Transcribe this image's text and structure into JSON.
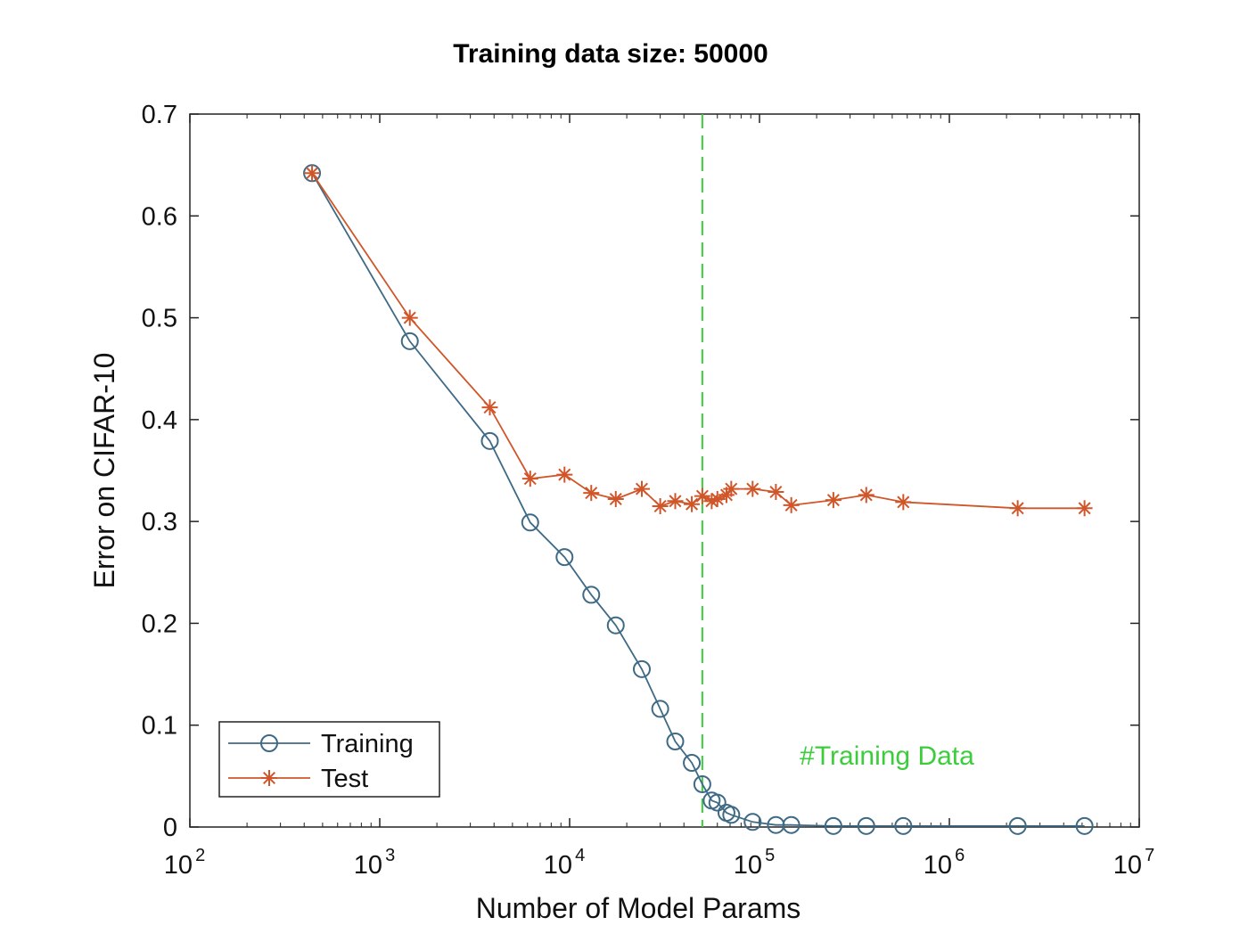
{
  "chart_data": {
    "type": "line",
    "title": "Training data size: 50000",
    "xlabel": "Number of Model Params",
    "ylabel": "Error on CIFAR-10",
    "xscale": "log",
    "xlim": [
      100,
      10000000
    ],
    "ylim": [
      0,
      0.7
    ],
    "xticks": [
      100,
      1000,
      10000,
      100000,
      1000000,
      10000000
    ],
    "xtick_labels": [
      {
        "base": "10",
        "exp": "2"
      },
      {
        "base": "10",
        "exp": "3"
      },
      {
        "base": "10",
        "exp": "4"
      },
      {
        "base": "10",
        "exp": "5"
      },
      {
        "base": "10",
        "exp": "6"
      },
      {
        "base": "10",
        "exp": "7"
      }
    ],
    "yticks": [
      0,
      0.1,
      0.2,
      0.3,
      0.4,
      0.5,
      0.6,
      0.7
    ],
    "ytick_labels": [
      "0",
      "0.1",
      "0.2",
      "0.3",
      "0.4",
      "0.5",
      "0.6",
      "0.7"
    ],
    "grid": false,
    "legend_position": "bottom-left",
    "series": [
      {
        "name": "Training",
        "marker": "circle",
        "color": "#3f6a85",
        "x": [
          440,
          1440,
          3800,
          6200,
          9400,
          13000,
          17500,
          24000,
          30000,
          36000,
          44000,
          50000,
          56000,
          60000,
          67000,
          71000,
          92000,
          122000,
          147000,
          245000,
          365000,
          572000,
          2290000,
          5150000
        ],
        "y": [
          0.642,
          0.477,
          0.379,
          0.299,
          0.265,
          0.228,
          0.198,
          0.155,
          0.116,
          0.084,
          0.063,
          0.042,
          0.026,
          0.024,
          0.014,
          0.012,
          0.005,
          0.002,
          0.002,
          0.001,
          0.001,
          0.001,
          0.001,
          0.001
        ]
      },
      {
        "name": "Test",
        "marker": "star",
        "color": "#d0562a",
        "x": [
          440,
          1440,
          3800,
          6200,
          9400,
          13000,
          17500,
          24000,
          30000,
          36000,
          44000,
          50000,
          56000,
          60000,
          67000,
          71000,
          92000,
          122000,
          147000,
          245000,
          365000,
          572000,
          2290000,
          5150000
        ],
        "y": [
          0.642,
          0.5,
          0.412,
          0.342,
          0.346,
          0.328,
          0.322,
          0.332,
          0.315,
          0.32,
          0.317,
          0.325,
          0.32,
          0.322,
          0.326,
          0.332,
          0.332,
          0.329,
          0.316,
          0.321,
          0.326,
          0.319,
          0.313,
          0.313
        ]
      }
    ],
    "reference_line": {
      "x": 50000,
      "style": "dashed",
      "color": "#3ccc3c",
      "label": "#Training Data"
    }
  }
}
